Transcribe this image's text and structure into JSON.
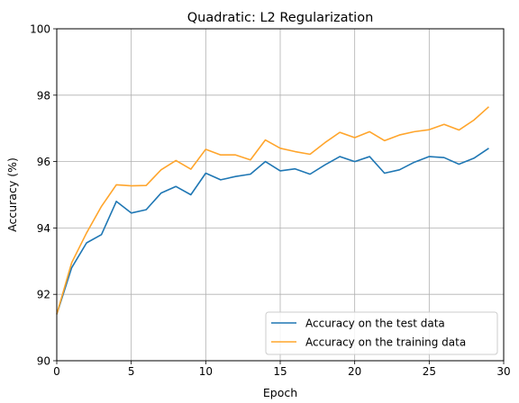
{
  "chart_data": {
    "type": "line",
    "title": "Quadratic:  L2 Regularization",
    "xlabel": "Epoch",
    "ylabel": "Accuracy (%)",
    "xlim": [
      0,
      30
    ],
    "ylim": [
      90,
      100
    ],
    "xticks": [
      0,
      5,
      10,
      15,
      20,
      25,
      30
    ],
    "yticks": [
      90,
      92,
      94,
      96,
      98,
      100
    ],
    "grid": true,
    "legend_position": "lower right",
    "x": [
      0,
      1,
      2,
      3,
      4,
      5,
      6,
      7,
      8,
      9,
      10,
      11,
      12,
      13,
      14,
      15,
      16,
      17,
      18,
      19,
      20,
      21,
      22,
      23,
      24,
      25,
      26,
      27,
      28,
      29
    ],
    "series": [
      {
        "name": "Accuracy on the test data",
        "color": "#1f77b4",
        "values": [
          91.4,
          92.8,
          93.55,
          93.8,
          94.8,
          94.45,
          94.55,
          95.05,
          95.25,
          95.0,
          95.65,
          95.45,
          95.55,
          95.62,
          96.0,
          95.72,
          95.78,
          95.62,
          95.9,
          96.15,
          96.0,
          96.15,
          95.65,
          95.75,
          95.98,
          96.15,
          96.12,
          95.92,
          96.1,
          96.4
        ]
      },
      {
        "name": "Accuracy on the training data",
        "color": "#ffa52c",
        "values": [
          91.4,
          92.95,
          93.85,
          94.65,
          95.3,
          95.27,
          95.28,
          95.75,
          96.03,
          95.77,
          96.37,
          96.2,
          96.2,
          96.05,
          96.65,
          96.4,
          96.3,
          96.22,
          96.57,
          96.88,
          96.72,
          96.9,
          96.63,
          96.8,
          96.9,
          96.96,
          97.12,
          96.95,
          97.25,
          97.65
        ]
      }
    ]
  }
}
